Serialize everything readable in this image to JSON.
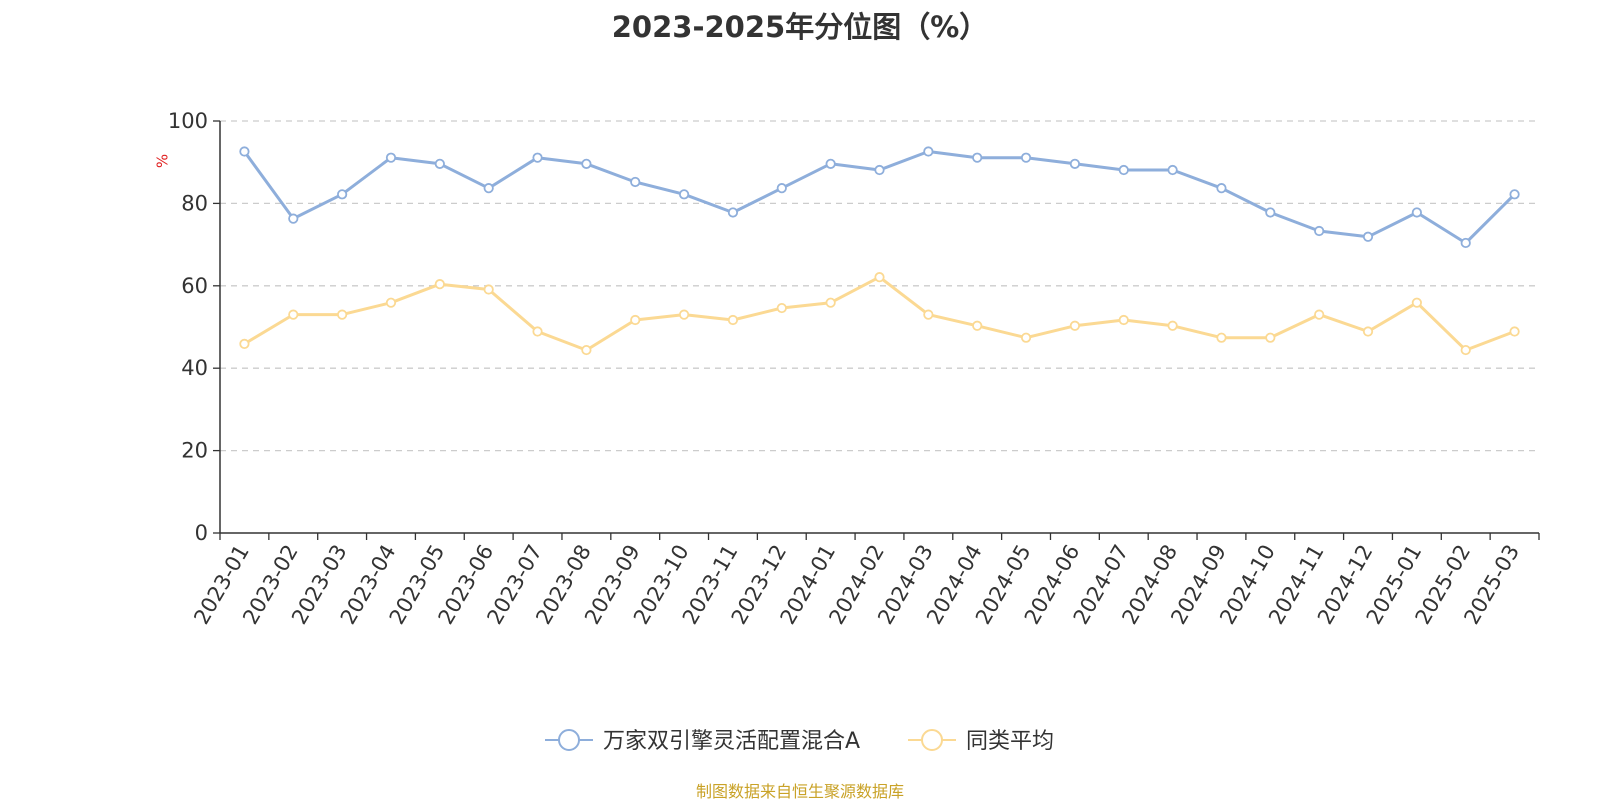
{
  "chart_data": {
    "type": "line",
    "title": "2023-2025年分位图（%）",
    "ylabel": "%",
    "xlabel": "",
    "ylim": [
      0,
      100
    ],
    "yticks": [
      0,
      20,
      40,
      60,
      80,
      100
    ],
    "grid": true,
    "legend_position": "bottom",
    "categories": [
      "2023-01",
      "2023-02",
      "2023-03",
      "2023-04",
      "2023-05",
      "2023-06",
      "2023-07",
      "2023-08",
      "2023-09",
      "2023-10",
      "2023-11",
      "2023-12",
      "2024-01",
      "2024-02",
      "2024-03",
      "2024-04",
      "2024-05",
      "2024-06",
      "2024-07",
      "2024-08",
      "2024-09",
      "2024-10",
      "2024-11",
      "2024-12",
      "2025-01",
      "2025-02",
      "2025-03"
    ],
    "series": [
      {
        "name": "万家双引擎灵活配置混合A",
        "color": "#8eaedb",
        "values": [
          92.6,
          76.3,
          82.2,
          91.1,
          89.6,
          83.7,
          91.1,
          89.6,
          85.2,
          82.2,
          77.8,
          83.7,
          89.6,
          88.1,
          92.6,
          91.1,
          91.1,
          89.6,
          88.1,
          88.1,
          83.7,
          77.8,
          73.3,
          71.9,
          77.8,
          70.4,
          82.2
        ]
      },
      {
        "name": "同类平均",
        "color": "#fbd993",
        "values": [
          45.9,
          53.0,
          53.0,
          55.9,
          60.4,
          59.1,
          48.9,
          44.4,
          51.7,
          53.0,
          51.7,
          54.6,
          55.9,
          62.1,
          53.0,
          50.3,
          47.4,
          50.3,
          51.7,
          50.3,
          47.4,
          47.4,
          53.0,
          48.9,
          55.9,
          44.4,
          48.9
        ]
      }
    ]
  },
  "footer": {
    "source_text": "制图数据来自恒生聚源数据库"
  }
}
